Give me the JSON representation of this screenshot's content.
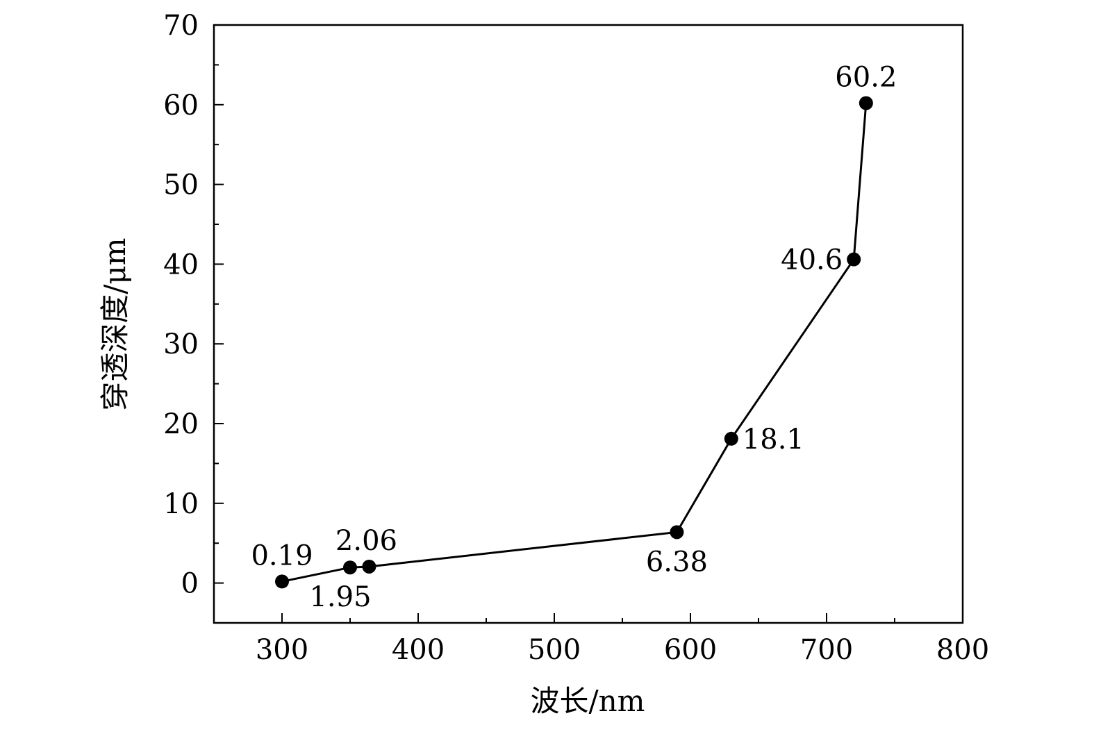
{
  "chart_data": {
    "type": "line",
    "title": "",
    "xlabel": "波长/nm",
    "ylabel": "穿透深度/μm",
    "xlim": [
      250,
      800
    ],
    "ylim": [
      -5,
      70
    ],
    "x_ticks": [
      300,
      400,
      500,
      600,
      700,
      800
    ],
    "x_tick_labels": [
      "300",
      "400",
      "500",
      "600",
      "700",
      "800"
    ],
    "x_minor_ticks": [
      350,
      450,
      550,
      650,
      750
    ],
    "y_ticks": [
      0,
      10,
      20,
      30,
      40,
      50,
      60,
      70
    ],
    "y_tick_labels": [
      "0",
      "10",
      "20",
      "30",
      "40",
      "50",
      "60",
      "70"
    ],
    "y_minor_ticks": [
      5,
      15,
      25,
      35,
      45,
      55,
      65
    ],
    "grid": false,
    "legend": "none",
    "series": [
      {
        "x": [
          300,
          350,
          364,
          590,
          630,
          720,
          729
        ],
        "y": [
          0.19,
          1.95,
          2.06,
          6.38,
          18.1,
          40.6,
          60.2
        ],
        "marker": "filled-circle",
        "color": "#000000"
      }
    ],
    "annotations": [
      {
        "text": "0.19",
        "x": 300,
        "y": 0.19,
        "anchor": "above"
      },
      {
        "text": "1.95",
        "x": 350,
        "y": 1.95,
        "anchor": "below"
      },
      {
        "text": "2.06",
        "x": 364,
        "y": 2.06,
        "anchor": "above"
      },
      {
        "text": "6.38",
        "x": 590,
        "y": 6.38,
        "anchor": "below"
      },
      {
        "text": "18.1",
        "x": 630,
        "y": 18.1,
        "anchor": "right"
      },
      {
        "text": "40.6",
        "x": 720,
        "y": 40.6,
        "anchor": "left"
      },
      {
        "text": "60.2",
        "x": 729,
        "y": 60.2,
        "anchor": "above"
      }
    ]
  }
}
